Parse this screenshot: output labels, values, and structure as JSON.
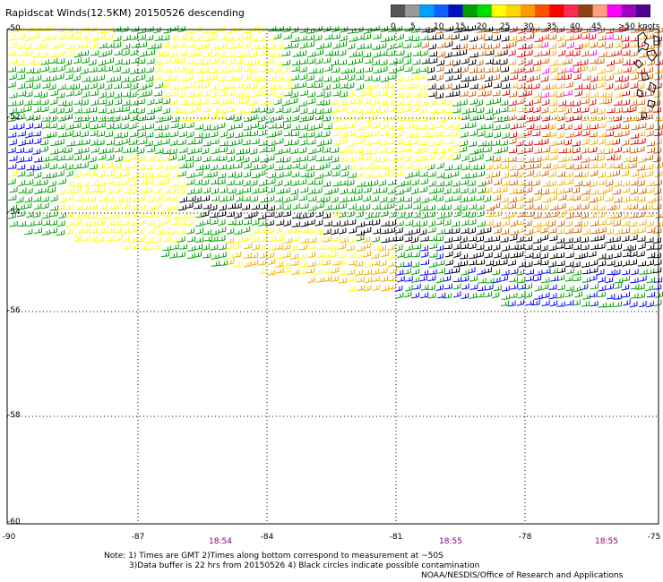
{
  "title": "Rapidscat Winds(12.5KM) 20150526 descending",
  "colorbar": {
    "colors": [
      "#555555",
      "#9a9a9a",
      "#00a0ff",
      "#1060ff",
      "#0010c0",
      "#00a000",
      "#00dd00",
      "#ffff00",
      "#ffd700",
      "#ff9900",
      "#ff5000",
      "#ff0000",
      "#ff2a55",
      "#8b4513",
      "#ffa07a",
      "#ff00ff",
      "#a000c0",
      "#500090"
    ],
    "labels": [
      "0",
      "5",
      "10",
      "15",
      "20",
      "25",
      "30",
      "35",
      "40",
      "45",
      ">50 knots"
    ]
  },
  "axes": {
    "lat_labels": [
      "-50",
      "-52",
      "-54",
      "-56",
      "-58",
      "-60"
    ],
    "lon_labels": [
      "-90",
      "-87",
      "-84",
      "-81",
      "-78",
      "-75"
    ],
    "times": [
      "18:54",
      "18:55",
      "18:55"
    ]
  },
  "notes": {
    "line1": "Note: 1) Times are GMT 2)Times along bottom correspond to measurement at ~50S",
    "line2": "3)Data buffer is 22 hrs from 20150526 4) Black circles indicate possible contamination",
    "credit": "NOAA/NESDIS/Office of Research and Applications"
  },
  "wind_field": {
    "units": "knots",
    "barb_colors": {
      "0-5": "#000000",
      "10-15": "#0000ff",
      "15-20": "#00a000",
      "20-25": "#ffff00",
      "25-30": "#f0b000",
      "30-35": "#d06000",
      "35-40": "#e00000",
      "40-45": "#ff00ff"
    }
  }
}
